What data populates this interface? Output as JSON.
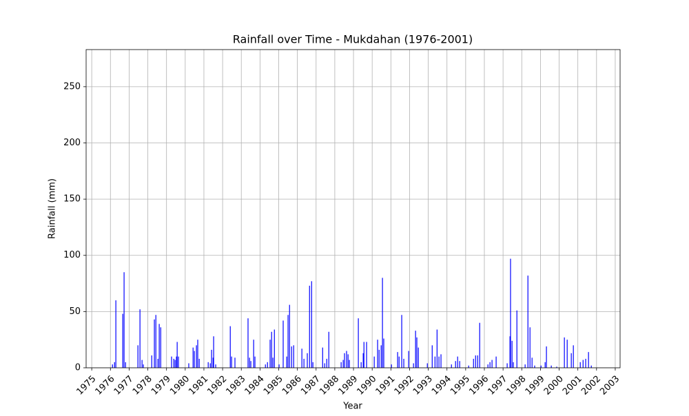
{
  "chart_data": {
    "type": "bar",
    "title": "Rainfall over Time - Mukdahan (1976-2001)",
    "xlabel": "Year",
    "ylabel": "Rainfall (mm)",
    "color": "#0000ff",
    "grid": true,
    "xlim": [
      1974.7,
      2003.26
    ],
    "ylim": [
      0,
      283
    ],
    "xticks": [
      1975,
      1976,
      1977,
      1978,
      1979,
      1980,
      1981,
      1982,
      1983,
      1984,
      1985,
      1986,
      1987,
      1988,
      1989,
      1990,
      1991,
      1992,
      1993,
      1994,
      1995,
      1996,
      1997,
      1998,
      1999,
      2000,
      2001,
      2002,
      2003
    ],
    "yticks": [
      0,
      50,
      100,
      150,
      200,
      250
    ],
    "x": [
      1976.11,
      1976.22,
      1976.29,
      1976.66,
      1976.73,
      1976.81,
      1977.47,
      1977.58,
      1977.69,
      1977.76,
      1978.21,
      1978.35,
      1978.43,
      1978.54,
      1978.61,
      1978.69,
      1979.27,
      1979.39,
      1979.46,
      1979.53,
      1979.57,
      1979.64,
      1980.19,
      1980.42,
      1980.49,
      1980.6,
      1980.67,
      1980.75,
      1981.23,
      1981.34,
      1981.41,
      1981.49,
      1981.52,
      1981.63,
      1982.41,
      1982.48,
      1982.66,
      1983.36,
      1983.44,
      1983.51,
      1983.66,
      1983.73,
      1984.29,
      1984.4,
      1984.54,
      1984.62,
      1984.69,
      1984.77,
      1985.02,
      1985.24,
      1985.43,
      1985.5,
      1985.58,
      1985.69,
      1985.8,
      1986.24,
      1986.35,
      1986.53,
      1986.65,
      1986.76,
      1986.83,
      1987.35,
      1987.46,
      1987.57,
      1987.68,
      1988.34,
      1988.45,
      1988.52,
      1988.63,
      1988.71,
      1988.78,
      1989.26,
      1989.41,
      1989.52,
      1989.56,
      1989.7,
      1990.11,
      1990.29,
      1990.37,
      1990.48,
      1990.55,
      1990.62,
      1991.03,
      1991.36,
      1991.44,
      1991.58,
      1991.69,
      1991.95,
      1992.21,
      1992.32,
      1992.39,
      1992.47,
      1992.95,
      1993.21,
      1993.36,
      1993.47,
      1993.57,
      1993.68,
      1994.24,
      1994.46,
      1994.57,
      1994.68,
      1995.16,
      1995.42,
      1995.53,
      1995.64,
      1995.75,
      1996.19,
      1996.3,
      1996.41,
      1996.63,
      1997.22,
      1997.37,
      1997.4,
      1997.48,
      1997.55,
      1997.74,
      1998.18,
      1998.33,
      1998.44,
      1998.55,
      1998.69,
      1999.03,
      1999.25,
      1999.32,
      1999.58,
      1999.87,
      2000.28,
      2000.43,
      2000.65,
      2000.76,
      2001.13,
      2001.28,
      2001.42,
      2001.57,
      2001.72
    ],
    "values": [
      3,
      5,
      60,
      48,
      85,
      5,
      20,
      52,
      7,
      3,
      11,
      43,
      47,
      8,
      39,
      36,
      10,
      8,
      7,
      10,
      23,
      10,
      4,
      18,
      15,
      20,
      25,
      8,
      5,
      4,
      16,
      9,
      28,
      3,
      37,
      10,
      9,
      44,
      9,
      6,
      25,
      10,
      3,
      5,
      25,
      32,
      9,
      34,
      3,
      42,
      10,
      47,
      56,
      19,
      20,
      17,
      8,
      13,
      73,
      77,
      5,
      18,
      4,
      8,
      32,
      5,
      7,
      13,
      15,
      12,
      7,
      44,
      5,
      13,
      23,
      23,
      10,
      25,
      16,
      20,
      80,
      26,
      3,
      14,
      10,
      47,
      8,
      15,
      4,
      33,
      27,
      18,
      4,
      20,
      10,
      34,
      10,
      12,
      3,
      6,
      10,
      6,
      2,
      8,
      11,
      11,
      40,
      3,
      5,
      7,
      10,
      4,
      28,
      97,
      24,
      5,
      51,
      3,
      82,
      36,
      9,
      2,
      2,
      5,
      19,
      2,
      1,
      27,
      25,
      13,
      20,
      5,
      7,
      8,
      14,
      2
    ]
  }
}
